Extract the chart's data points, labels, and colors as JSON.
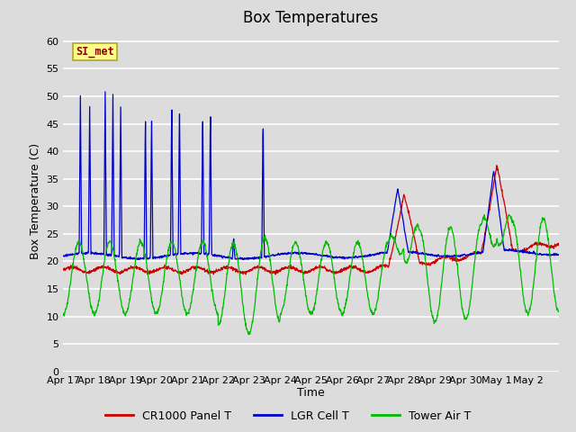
{
  "title": "Box Temperatures",
  "xlabel": "Time",
  "ylabel": "Box Temperature (C)",
  "ylim": [
    0,
    62
  ],
  "yticks": [
    0,
    5,
    10,
    15,
    20,
    25,
    30,
    35,
    40,
    45,
    50,
    55,
    60
  ],
  "x_labels": [
    "Apr 17",
    "Apr 18",
    "Apr 19",
    "Apr 20",
    "Apr 21",
    "Apr 22",
    "Apr 23",
    "Apr 24",
    "Apr 25",
    "Apr 26",
    "Apr 27",
    "Apr 28",
    "Apr 29",
    "Apr 30",
    "May 1",
    "May 2"
  ],
  "background_color": "#dcdcdc",
  "plot_bg_color": "#dcdcdc",
  "grid_color": "#ffffff",
  "line_colors": {
    "panel": "#cc0000",
    "lgr": "#0000cc",
    "tower": "#00bb00"
  },
  "legend_labels": [
    "CR1000 Panel T",
    "LGR Cell T",
    "Tower Air T"
  ],
  "watermark_text": "SI_met",
  "watermark_color": "#8b0000",
  "watermark_bg": "#ffff88",
  "title_fontsize": 12,
  "axis_fontsize": 9,
  "tick_fontsize": 8,
  "figsize": [
    6.4,
    4.8
  ],
  "dpi": 100
}
